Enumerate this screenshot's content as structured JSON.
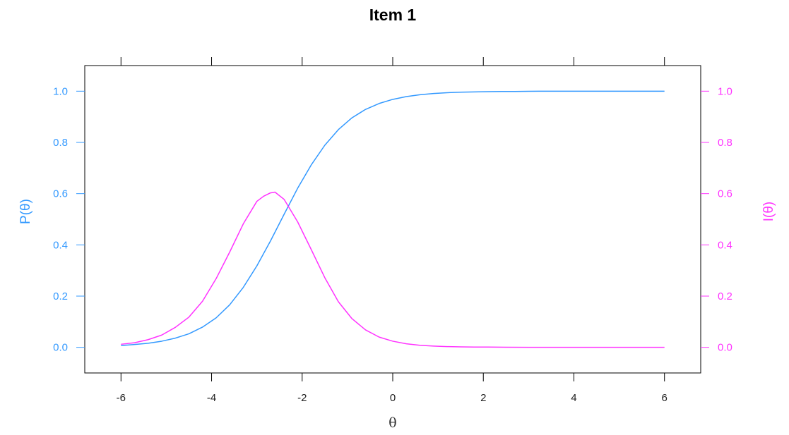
{
  "chart_data": {
    "type": "line",
    "title": "Item 1",
    "xlabel": "θ",
    "ylabel_left": "P(θ)",
    "ylabel_right": "I(θ)",
    "xlim": [
      -6.8,
      6.8
    ],
    "ylim": [
      -0.1,
      1.1
    ],
    "x_ticks": [
      -6,
      -4,
      -2,
      0,
      2,
      4,
      6
    ],
    "x_tick_labels": [
      "-6",
      "-4",
      "-2",
      "0",
      "2",
      "4",
      "6"
    ],
    "y_ticks": [
      0.0,
      0.2,
      0.4,
      0.6,
      0.8,
      1.0
    ],
    "y_tick_labels": [
      "0.0",
      "0.2",
      "0.4",
      "0.6",
      "0.8",
      "1.0"
    ],
    "grid": false,
    "colors": {
      "left_axis": "#3399ff",
      "right_axis": "#ff33ff",
      "frame": "#000000"
    },
    "series": [
      {
        "name": "P(θ)",
        "axis": "left",
        "color": "#3399ff",
        "x": [
          -6.0,
          -5.7,
          -5.4,
          -5.1,
          -4.8,
          -4.5,
          -4.2,
          -3.9,
          -3.6,
          -3.3,
          -3.0,
          -2.7,
          -2.4,
          -2.1,
          -1.8,
          -1.5,
          -1.2,
          -0.9,
          -0.6,
          -0.3,
          0.0,
          0.3,
          0.6,
          0.9,
          1.2,
          1.5,
          1.8,
          2.1,
          2.4,
          2.7,
          3.0,
          3.5,
          4.0,
          4.5,
          5.0,
          5.5,
          6.0
        ],
        "y": [
          0.007,
          0.011,
          0.016,
          0.024,
          0.036,
          0.053,
          0.079,
          0.115,
          0.166,
          0.234,
          0.318,
          0.415,
          0.519,
          0.621,
          0.712,
          0.789,
          0.85,
          0.896,
          0.929,
          0.952,
          0.968,
          0.979,
          0.986,
          0.991,
          0.994,
          0.996,
          0.997,
          0.998,
          0.999,
          0.999,
          0.9995,
          1.0,
          1.0,
          1.0,
          1.0,
          1.0,
          1.0
        ]
      },
      {
        "name": "I(θ)",
        "axis": "right",
        "color": "#ff33ff",
        "x": [
          -6.0,
          -5.7,
          -5.4,
          -5.1,
          -4.8,
          -4.5,
          -4.2,
          -3.9,
          -3.6,
          -3.3,
          -3.0,
          -2.85,
          -2.7,
          -2.6,
          -2.4,
          -2.1,
          -1.8,
          -1.5,
          -1.2,
          -0.9,
          -0.6,
          -0.3,
          0.0,
          0.3,
          0.6,
          0.9,
          1.2,
          1.5,
          1.8,
          2.1,
          2.5,
          3.0,
          3.5,
          4.0,
          5.0,
          6.0
        ],
        "y": [
          0.012,
          0.018,
          0.03,
          0.048,
          0.078,
          0.118,
          0.18,
          0.268,
          0.372,
          0.482,
          0.57,
          0.59,
          0.603,
          0.606,
          0.578,
          0.49,
          0.382,
          0.272,
          0.178,
          0.112,
          0.068,
          0.04,
          0.024,
          0.014,
          0.008,
          0.005,
          0.003,
          0.002,
          0.001,
          0.001,
          0.0005,
          0.0,
          0.0,
          0.0,
          0.0,
          0.0
        ]
      }
    ]
  }
}
